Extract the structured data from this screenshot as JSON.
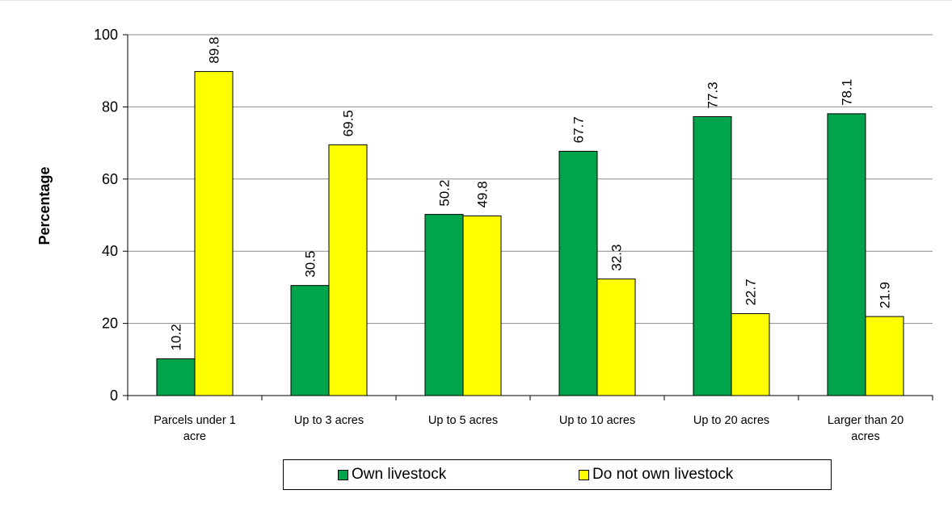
{
  "chart_data": {
    "type": "bar",
    "title": "",
    "xlabel": "",
    "ylabel": "Percentage",
    "ylim": [
      0,
      100
    ],
    "yticks": [
      0,
      20,
      40,
      60,
      80,
      100
    ],
    "grid": true,
    "legend_position": "bottom",
    "categories": [
      [
        "Parcels under 1",
        "acre"
      ],
      [
        "Up to 3 acres"
      ],
      [
        "Up to 5 acres"
      ],
      [
        "Up to 10 acres"
      ],
      [
        "Up to 20 acres"
      ],
      [
        "Larger than 20",
        "acres"
      ]
    ],
    "series": [
      {
        "name": "Own livestock",
        "color": "#00A44A",
        "values": [
          10.2,
          30.5,
          50.2,
          67.7,
          77.3,
          78.1
        ],
        "labels": [
          "10.2",
          "30.5",
          "50.2",
          "67.7",
          "77.3",
          "78.1"
        ]
      },
      {
        "name": "Do not own livestock",
        "color": "#FFFF00",
        "values": [
          89.8,
          69.5,
          49.8,
          32.3,
          22.7,
          21.9
        ],
        "labels": [
          "89.8",
          "69.5",
          "49.8",
          "32.3",
          "22.7",
          "21.9"
        ]
      }
    ]
  },
  "legend": {
    "own_label": "Own livestock",
    "not_own_label": "Do not own livestock"
  }
}
